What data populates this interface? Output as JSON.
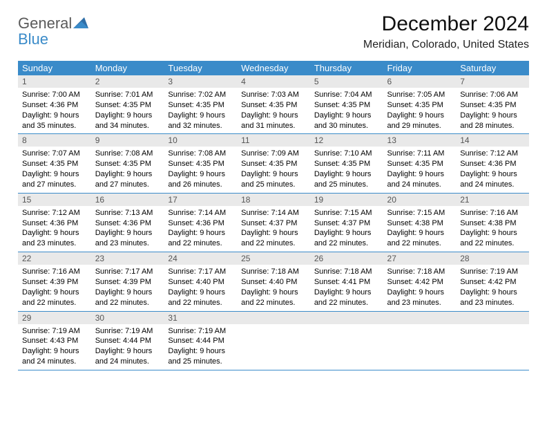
{
  "logo": {
    "line1": "General",
    "line2": "Blue"
  },
  "title": "December 2024",
  "location": "Meridian, Colorado, United States",
  "colors": {
    "header_bg": "#3a8bc9",
    "header_text": "#ffffff",
    "daynum_bg": "#e9e9e9",
    "row_border": "#3a8bc9",
    "logo_gray": "#5a5a5a",
    "logo_blue": "#3a8bc9"
  },
  "weekdays": [
    "Sunday",
    "Monday",
    "Tuesday",
    "Wednesday",
    "Thursday",
    "Friday",
    "Saturday"
  ],
  "weeks": [
    [
      {
        "num": "1",
        "sunrise": "Sunrise: 7:00 AM",
        "sunset": "Sunset: 4:36 PM",
        "day1": "Daylight: 9 hours",
        "day2": "and 35 minutes."
      },
      {
        "num": "2",
        "sunrise": "Sunrise: 7:01 AM",
        "sunset": "Sunset: 4:35 PM",
        "day1": "Daylight: 9 hours",
        "day2": "and 34 minutes."
      },
      {
        "num": "3",
        "sunrise": "Sunrise: 7:02 AM",
        "sunset": "Sunset: 4:35 PM",
        "day1": "Daylight: 9 hours",
        "day2": "and 32 minutes."
      },
      {
        "num": "4",
        "sunrise": "Sunrise: 7:03 AM",
        "sunset": "Sunset: 4:35 PM",
        "day1": "Daylight: 9 hours",
        "day2": "and 31 minutes."
      },
      {
        "num": "5",
        "sunrise": "Sunrise: 7:04 AM",
        "sunset": "Sunset: 4:35 PM",
        "day1": "Daylight: 9 hours",
        "day2": "and 30 minutes."
      },
      {
        "num": "6",
        "sunrise": "Sunrise: 7:05 AM",
        "sunset": "Sunset: 4:35 PM",
        "day1": "Daylight: 9 hours",
        "day2": "and 29 minutes."
      },
      {
        "num": "7",
        "sunrise": "Sunrise: 7:06 AM",
        "sunset": "Sunset: 4:35 PM",
        "day1": "Daylight: 9 hours",
        "day2": "and 28 minutes."
      }
    ],
    [
      {
        "num": "8",
        "sunrise": "Sunrise: 7:07 AM",
        "sunset": "Sunset: 4:35 PM",
        "day1": "Daylight: 9 hours",
        "day2": "and 27 minutes."
      },
      {
        "num": "9",
        "sunrise": "Sunrise: 7:08 AM",
        "sunset": "Sunset: 4:35 PM",
        "day1": "Daylight: 9 hours",
        "day2": "and 27 minutes."
      },
      {
        "num": "10",
        "sunrise": "Sunrise: 7:08 AM",
        "sunset": "Sunset: 4:35 PM",
        "day1": "Daylight: 9 hours",
        "day2": "and 26 minutes."
      },
      {
        "num": "11",
        "sunrise": "Sunrise: 7:09 AM",
        "sunset": "Sunset: 4:35 PM",
        "day1": "Daylight: 9 hours",
        "day2": "and 25 minutes."
      },
      {
        "num": "12",
        "sunrise": "Sunrise: 7:10 AM",
        "sunset": "Sunset: 4:35 PM",
        "day1": "Daylight: 9 hours",
        "day2": "and 25 minutes."
      },
      {
        "num": "13",
        "sunrise": "Sunrise: 7:11 AM",
        "sunset": "Sunset: 4:35 PM",
        "day1": "Daylight: 9 hours",
        "day2": "and 24 minutes."
      },
      {
        "num": "14",
        "sunrise": "Sunrise: 7:12 AM",
        "sunset": "Sunset: 4:36 PM",
        "day1": "Daylight: 9 hours",
        "day2": "and 24 minutes."
      }
    ],
    [
      {
        "num": "15",
        "sunrise": "Sunrise: 7:12 AM",
        "sunset": "Sunset: 4:36 PM",
        "day1": "Daylight: 9 hours",
        "day2": "and 23 minutes."
      },
      {
        "num": "16",
        "sunrise": "Sunrise: 7:13 AM",
        "sunset": "Sunset: 4:36 PM",
        "day1": "Daylight: 9 hours",
        "day2": "and 23 minutes."
      },
      {
        "num": "17",
        "sunrise": "Sunrise: 7:14 AM",
        "sunset": "Sunset: 4:36 PM",
        "day1": "Daylight: 9 hours",
        "day2": "and 22 minutes."
      },
      {
        "num": "18",
        "sunrise": "Sunrise: 7:14 AM",
        "sunset": "Sunset: 4:37 PM",
        "day1": "Daylight: 9 hours",
        "day2": "and 22 minutes."
      },
      {
        "num": "19",
        "sunrise": "Sunrise: 7:15 AM",
        "sunset": "Sunset: 4:37 PM",
        "day1": "Daylight: 9 hours",
        "day2": "and 22 minutes."
      },
      {
        "num": "20",
        "sunrise": "Sunrise: 7:15 AM",
        "sunset": "Sunset: 4:38 PM",
        "day1": "Daylight: 9 hours",
        "day2": "and 22 minutes."
      },
      {
        "num": "21",
        "sunrise": "Sunrise: 7:16 AM",
        "sunset": "Sunset: 4:38 PM",
        "day1": "Daylight: 9 hours",
        "day2": "and 22 minutes."
      }
    ],
    [
      {
        "num": "22",
        "sunrise": "Sunrise: 7:16 AM",
        "sunset": "Sunset: 4:39 PM",
        "day1": "Daylight: 9 hours",
        "day2": "and 22 minutes."
      },
      {
        "num": "23",
        "sunrise": "Sunrise: 7:17 AM",
        "sunset": "Sunset: 4:39 PM",
        "day1": "Daylight: 9 hours",
        "day2": "and 22 minutes."
      },
      {
        "num": "24",
        "sunrise": "Sunrise: 7:17 AM",
        "sunset": "Sunset: 4:40 PM",
        "day1": "Daylight: 9 hours",
        "day2": "and 22 minutes."
      },
      {
        "num": "25",
        "sunrise": "Sunrise: 7:18 AM",
        "sunset": "Sunset: 4:40 PM",
        "day1": "Daylight: 9 hours",
        "day2": "and 22 minutes."
      },
      {
        "num": "26",
        "sunrise": "Sunrise: 7:18 AM",
        "sunset": "Sunset: 4:41 PM",
        "day1": "Daylight: 9 hours",
        "day2": "and 22 minutes."
      },
      {
        "num": "27",
        "sunrise": "Sunrise: 7:18 AM",
        "sunset": "Sunset: 4:42 PM",
        "day1": "Daylight: 9 hours",
        "day2": "and 23 minutes."
      },
      {
        "num": "28",
        "sunrise": "Sunrise: 7:19 AM",
        "sunset": "Sunset: 4:42 PM",
        "day1": "Daylight: 9 hours",
        "day2": "and 23 minutes."
      }
    ],
    [
      {
        "num": "29",
        "sunrise": "Sunrise: 7:19 AM",
        "sunset": "Sunset: 4:43 PM",
        "day1": "Daylight: 9 hours",
        "day2": "and 24 minutes."
      },
      {
        "num": "30",
        "sunrise": "Sunrise: 7:19 AM",
        "sunset": "Sunset: 4:44 PM",
        "day1": "Daylight: 9 hours",
        "day2": "and 24 minutes."
      },
      {
        "num": "31",
        "sunrise": "Sunrise: 7:19 AM",
        "sunset": "Sunset: 4:44 PM",
        "day1": "Daylight: 9 hours",
        "day2": "and 25 minutes."
      },
      null,
      null,
      null,
      null
    ]
  ]
}
